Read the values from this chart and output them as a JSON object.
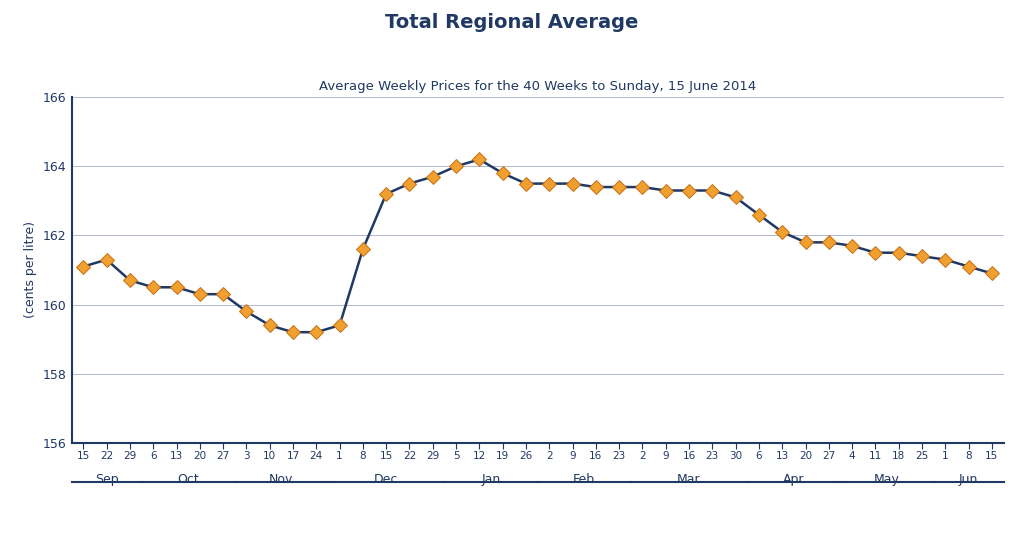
{
  "title": "Total Regional Average",
  "subtitle": "Average Weekly Prices for the 40 Weeks to Sunday, 15 June 2014",
  "ylabel": "(cents per litre)",
  "ylim": [
    156,
    166
  ],
  "yticks": [
    156,
    158,
    160,
    162,
    164,
    166
  ],
  "line_color": "#1f3864",
  "marker_color": "#f0a030",
  "marker_edge_color": "#c87010",
  "background_color": "#ffffff",
  "grid_color": "#b0b8d0",
  "axis_color": "#1f3864",
  "title_color": "#1f3864",
  "date_labels": [
    "15",
    "22",
    "29",
    "6",
    "13",
    "20",
    "27",
    "3",
    "10",
    "17",
    "24",
    "1",
    "8",
    "15",
    "22",
    "29",
    "5",
    "12",
    "19",
    "26",
    "2",
    "9",
    "16",
    "23",
    "2",
    "9",
    "16",
    "23",
    "30",
    "6",
    "13",
    "20",
    "27",
    "4",
    "11",
    "18",
    "25",
    "1",
    "8",
    "15"
  ],
  "month_labels": [
    "Sep",
    "Oct",
    "Nov",
    "Dec",
    "Jan",
    "Feb",
    "Mar",
    "Apr",
    "May",
    "Jun"
  ],
  "month_starts": [
    -0.5,
    2.5,
    6.5,
    10.5,
    15.5,
    19.5,
    23.5,
    28.5,
    32.5,
    36.5
  ],
  "month_ends": [
    2.5,
    6.5,
    10.5,
    15.5,
    19.5,
    23.5,
    28.5,
    32.5,
    36.5,
    39.5
  ],
  "month_centers": [
    1.0,
    4.5,
    8.5,
    13.0,
    17.5,
    21.5,
    26.0,
    30.5,
    34.5,
    38.0
  ],
  "values": [
    161.1,
    161.3,
    160.7,
    160.5,
    160.5,
    160.3,
    160.3,
    159.8,
    159.4,
    159.2,
    159.2,
    159.4,
    161.6,
    163.2,
    163.5,
    163.7,
    164.0,
    164.2,
    163.8,
    163.5,
    163.5,
    163.5,
    163.4,
    163.4,
    163.4,
    163.3,
    163.3,
    163.3,
    163.1,
    162.6,
    162.1,
    161.8,
    161.8,
    161.7,
    161.5,
    161.5,
    161.4,
    161.3,
    161.1,
    160.9
  ]
}
